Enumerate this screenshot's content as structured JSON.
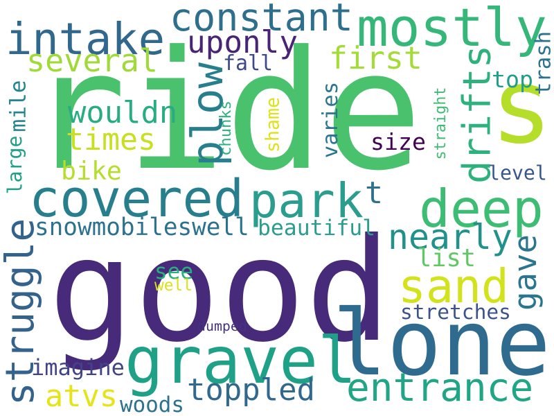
{
  "background": "#ffffff",
  "palette": [
    "#440154",
    "#46327e",
    "#365c8d",
    "#277f8e",
    "#1fa187",
    "#4ac16d",
    "#a0da39",
    "#fde725"
  ],
  "words": [
    {
      "id": "ride",
      "text": "ride",
      "color": "#4ac16d",
      "vertical": false
    },
    {
      "id": "good",
      "text": "good",
      "color": "#472a7a",
      "vertical": false
    },
    {
      "id": "lone",
      "text": "lone",
      "color": "#2f6b8e",
      "vertical": false
    },
    {
      "id": "gravel",
      "text": "gravel",
      "color": "#1fa187",
      "vertical": false
    },
    {
      "id": "s",
      "text": "s",
      "color": "#b5de2b",
      "vertical": false
    },
    {
      "id": "sand",
      "text": "sand",
      "color": "#d2e21b",
      "vertical": false
    },
    {
      "id": "deep",
      "text": "deep",
      "color": "#3dbc74",
      "vertical": false
    },
    {
      "id": "covered",
      "text": "covered",
      "color": "#277f8e",
      "vertical": false
    },
    {
      "id": "park",
      "text": "park",
      "color": "#2a9d8f",
      "vertical": false
    },
    {
      "id": "mostly",
      "text": "mostly",
      "color": "#35b779",
      "vertical": false
    },
    {
      "id": "intake",
      "text": "intake",
      "color": "#31688e",
      "vertical": false
    },
    {
      "id": "constant",
      "text": "constant",
      "color": "#2e6f8e",
      "vertical": false
    },
    {
      "id": "entrance",
      "text": "entrance",
      "color": "#21a685",
      "vertical": false
    },
    {
      "id": "struggle",
      "text": "struggle",
      "color": "#33638d",
      "vertical": true
    },
    {
      "id": "drifts",
      "text": "drifts",
      "color": "#2db27d",
      "vertical": true
    },
    {
      "id": "plow",
      "text": "plow",
      "color": "#277f8e",
      "vertical": true
    },
    {
      "id": "nearly",
      "text": "nearly",
      "color": "#21918c",
      "vertical": false
    },
    {
      "id": "first",
      "text": "first",
      "color": "#a5db36",
      "vertical": false
    },
    {
      "id": "toppled",
      "text": "toppled",
      "color": "#31688e",
      "vertical": false
    },
    {
      "id": "several",
      "text": "several",
      "color": "#a0da39",
      "vertical": false
    },
    {
      "id": "uponly",
      "text": "uponly",
      "color": "#482475",
      "vertical": false
    },
    {
      "id": "times",
      "text": "times",
      "color": "#c8e020",
      "vertical": false
    },
    {
      "id": "atvs",
      "text": "atvs",
      "color": "#e5e419",
      "vertical": false
    },
    {
      "id": "snowmobileswell",
      "text": "snowmobileswell",
      "color": "#2c728e",
      "vertical": false
    },
    {
      "id": "gave",
      "text": "gave",
      "color": "#2a768e",
      "vertical": true
    },
    {
      "id": "mile",
      "text": "mile",
      "color": "#25858e",
      "vertical": true
    },
    {
      "id": "wouldn",
      "text": "wouldn",
      "color": "#27ad81",
      "vertical": false
    },
    {
      "id": "beautiful",
      "text": "beautiful",
      "color": "#2a9d8f",
      "vertical": false
    },
    {
      "id": "stretches",
      "text": "stretches",
      "color": "#3b528b",
      "vertical": false
    },
    {
      "id": "imagine",
      "text": "imagine",
      "color": "#414487",
      "vertical": false
    },
    {
      "id": "list",
      "text": "list",
      "color": "#5ec962",
      "vertical": false
    },
    {
      "id": "varies",
      "text": "varies",
      "color": "#2a768e",
      "vertical": true
    },
    {
      "id": "size",
      "text": "size",
      "color": "#440154",
      "vertical": false
    },
    {
      "id": "bike",
      "text": "bike",
      "color": "#b5de2b",
      "vertical": false
    },
    {
      "id": "top",
      "text": "top",
      "color": "#1f9e89",
      "vertical": false
    },
    {
      "id": "trash",
      "text": "trash",
      "color": "#2c728e",
      "vertical": true
    },
    {
      "id": "fall",
      "text": "fall",
      "color": "#3e4989",
      "vertical": false
    },
    {
      "id": "woods",
      "text": "woods",
      "color": "#2c728e",
      "vertical": false
    },
    {
      "id": "level",
      "text": "level",
      "color": "#39568c",
      "vertical": false
    },
    {
      "id": "t",
      "text": "t",
      "color": "#2c728e",
      "vertical": false
    },
    {
      "id": "straight",
      "text": "straight",
      "color": "#3dbc74",
      "vertical": true
    },
    {
      "id": "chunks",
      "text": "chunks",
      "color": "#2db27d",
      "vertical": true
    },
    {
      "id": "shame",
      "text": "shame",
      "color": "#dde318",
      "vertical": true
    },
    {
      "id": "large",
      "text": "large",
      "color": "#1fa187",
      "vertical": true
    },
    {
      "id": "see",
      "text": "see",
      "color": "#29af7f",
      "vertical": false
    },
    {
      "id": "well",
      "text": "well",
      "color": "#d8e219",
      "vertical": false
    },
    {
      "id": "dumped",
      "text": "dumped",
      "color": "#46337f",
      "vertical": false
    }
  ]
}
